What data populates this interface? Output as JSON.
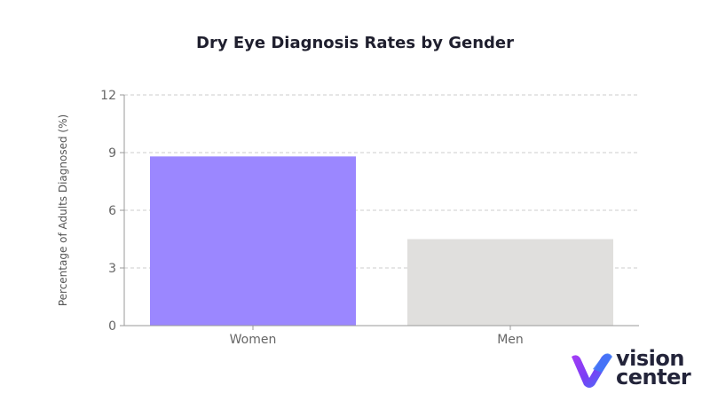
{
  "chart_data": {
    "type": "bar",
    "title": "Dry Eye Diagnosis Rates by Gender",
    "xlabel": "",
    "ylabel": "Percentage of Adults Diagnosed (%)",
    "categories": [
      "Women",
      "Men"
    ],
    "values": [
      8.8,
      4.5
    ],
    "bar_colors": [
      "#9b87ff",
      "#e0dfdd"
    ],
    "ylim": [
      0,
      12
    ],
    "yticks": [
      0,
      3,
      6,
      9,
      12
    ],
    "grid": true
  },
  "logo": {
    "line1": "vision",
    "line2": "center",
    "colors": [
      "#3d7bf7",
      "#7b3df5",
      "#a63df5"
    ]
  }
}
